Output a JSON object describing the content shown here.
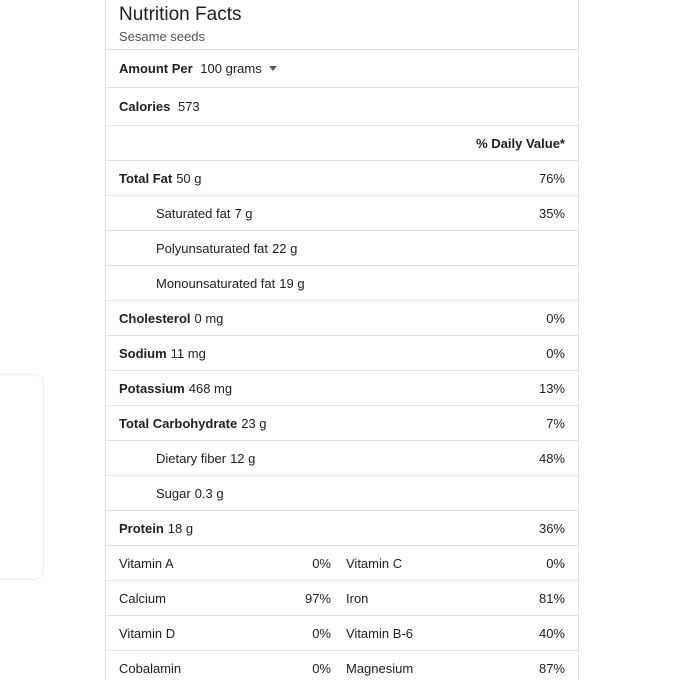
{
  "card": {
    "title": "Nutrition Facts",
    "subtitle": "Sesame seeds",
    "serving": {
      "label": "Amount Per",
      "value": "100 grams",
      "dropdown_icon": "caret-down"
    },
    "calories": {
      "label": "Calories",
      "value": "573"
    },
    "daily_value_header": "% Daily Value*",
    "nutrients": [
      {
        "label": "Total Fat",
        "amount": "50 g",
        "dv": "76%"
      },
      {
        "label": "Saturated fat",
        "amount": "7 g",
        "dv": "35%"
      },
      {
        "label": "Polyunsaturated fat",
        "amount": "22 g",
        "dv": ""
      },
      {
        "label": "Monounsaturated fat",
        "amount": "19 g",
        "dv": ""
      },
      {
        "label": "Cholesterol",
        "amount": "0 mg",
        "dv": "0%"
      },
      {
        "label": "Sodium",
        "amount": "11 mg",
        "dv": "0%"
      },
      {
        "label": "Potassium",
        "amount": "468 mg",
        "dv": "13%"
      },
      {
        "label": "Total Carbohydrate",
        "amount": "23 g",
        "dv": "7%"
      },
      {
        "label": "Dietary fiber",
        "amount": "12 g",
        "dv": "48%"
      },
      {
        "label": "Sugar",
        "amount": "0.3 g",
        "dv": ""
      },
      {
        "label": "Protein",
        "amount": "18 g",
        "dv": "36%"
      }
    ],
    "micronutrients": [
      {
        "left": {
          "label": "Vitamin A",
          "value": "0%"
        },
        "right": {
          "label": "Vitamin C",
          "value": "0%"
        }
      },
      {
        "left": {
          "label": "Calcium",
          "value": "97%"
        },
        "right": {
          "label": "Iron",
          "value": "81%"
        }
      },
      {
        "left": {
          "label": "Vitamin D",
          "value": "0%"
        },
        "right": {
          "label": "Vitamin B-6",
          "value": "40%"
        }
      },
      {
        "left": {
          "label": "Cobalamin",
          "value": "0%"
        },
        "right": {
          "label": "Magnesium",
          "value": "87%"
        }
      }
    ]
  },
  "colors": {
    "divider": "#e2e2e2",
    "card_border": "#dedede",
    "text": "#212121"
  }
}
